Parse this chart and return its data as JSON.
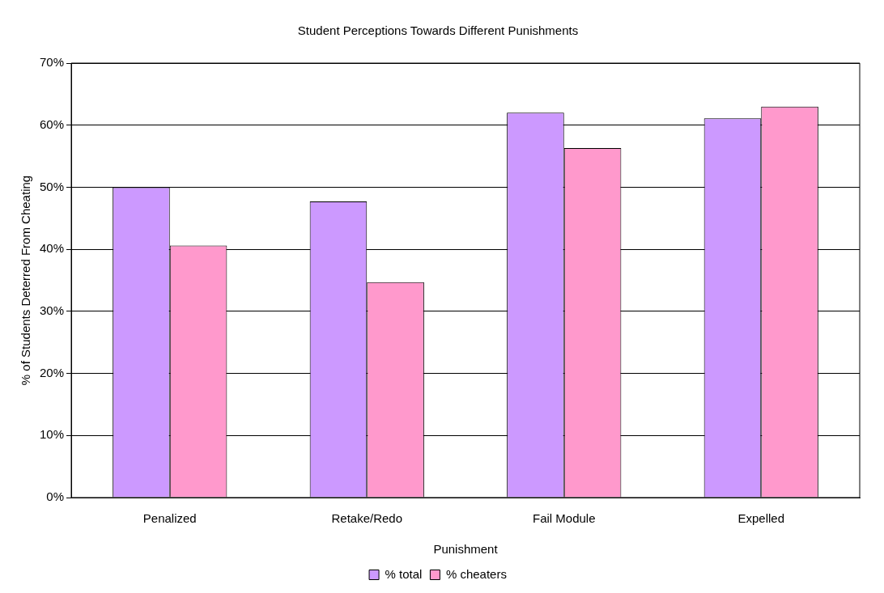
{
  "chart_data": {
    "type": "bar",
    "title": "Student Perceptions Towards Different Punishments",
    "xlabel": "Punishment",
    "ylabel": "% of Students Deterred From Cheating",
    "categories": [
      "Penalized",
      "Retake/Redo",
      "Fail Module",
      "Expelled"
    ],
    "series": [
      {
        "name": "% total",
        "color": "#cc99ff",
        "values": [
          50,
          47.7,
          62,
          61.1
        ]
      },
      {
        "name": "% cheaters",
        "color": "#ff99cc",
        "values": [
          40.6,
          34.7,
          56.3,
          63
        ]
      }
    ],
    "ylim": [
      0,
      70
    ],
    "yticks": [
      {
        "value": 0,
        "label": "0%"
      },
      {
        "value": 10,
        "label": "10%"
      },
      {
        "value": 20,
        "label": "20%"
      },
      {
        "value": 30,
        "label": "30%"
      },
      {
        "value": 40,
        "label": "40%"
      },
      {
        "value": 50,
        "label": "50%"
      },
      {
        "value": 60,
        "label": "60%"
      },
      {
        "value": 70,
        "label": "70%"
      }
    ],
    "grid": "y",
    "legend": "bottom"
  }
}
